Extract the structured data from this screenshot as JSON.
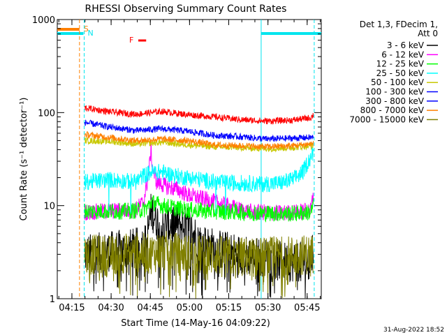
{
  "chart_data": {
    "type": "line",
    "title": "RHESSI Observing Summary Count Rates",
    "xlabel": "Start Time (14-May-16 04:09:22)",
    "ylabel": "Count Rate (s⁻¹ detector⁻¹)",
    "footer": "31-Aug-2022 18:52",
    "yscale": "log",
    "ylim": [
      1,
      1000
    ],
    "xlim_minutes": [
      0,
      101
    ],
    "xticks": [
      {
        "label": "04:15",
        "minute": 5.6
      },
      {
        "label": "04:30",
        "minute": 20.6
      },
      {
        "label": "04:45",
        "minute": 35.6
      },
      {
        "label": "05:00",
        "minute": 50.6
      },
      {
        "label": "05:15",
        "minute": 65.6
      },
      {
        "label": "05:30",
        "minute": 80.6
      },
      {
        "label": "05:45",
        "minute": 95.6
      }
    ],
    "yticks": [
      {
        "label": "1",
        "value": 1
      },
      {
        "label": "10",
        "value": 10
      },
      {
        "label": "100",
        "value": 100
      },
      {
        "label": "1000",
        "value": 1000
      }
    ],
    "legend": {
      "title_lines": [
        "Det 1,3, FDecim 1,",
        "Att 0"
      ],
      "placement": "right"
    },
    "flags": {
      "saa": {
        "label": "S",
        "color": "#ff8000",
        "start_minute": 0,
        "end_minute": 8.5
      },
      "night": {
        "label": "N",
        "color": "#00e5ee",
        "intervals": [
          [
            0,
            10
          ],
          [
            78,
            101
          ]
        ]
      },
      "flare": {
        "label": "F",
        "color": "#ff0000",
        "start_minute": 31,
        "end_minute": 34
      }
    },
    "data_window_minutes": [
      10.5,
      98
    ],
    "vertical_lines": [
      {
        "minute": 8.5,
        "color": "#ff8000",
        "style": "dashed"
      },
      {
        "minute": 10.3,
        "color": "#00e5ee",
        "style": "dashed"
      },
      {
        "minute": 78,
        "color": "#00e5ee",
        "style": "solid"
      },
      {
        "minute": 98.3,
        "color": "#00e5ee",
        "style": "dashed"
      }
    ],
    "series": [
      {
        "name": "3 - 6 keV",
        "color": "#000000",
        "points": [
          [
            11,
            3
          ],
          [
            30,
            3.5
          ],
          [
            34,
            4
          ],
          [
            36,
            9
          ],
          [
            40,
            5.5
          ],
          [
            44,
            6.5
          ],
          [
            50,
            6
          ],
          [
            55,
            4
          ],
          [
            60,
            3.5
          ],
          [
            70,
            3
          ],
          [
            78,
            2.8
          ],
          [
            85,
            2.5
          ],
          [
            92,
            2.5
          ],
          [
            97,
            2.5
          ],
          [
            98,
            4
          ]
        ]
      },
      {
        "name": "6 - 12 keV",
        "color": "#ff00ff",
        "points": [
          [
            11,
            8.5
          ],
          [
            30,
            9
          ],
          [
            33,
            11
          ],
          [
            35,
            22
          ],
          [
            35.8,
            40
          ],
          [
            36.5,
            25
          ],
          [
            38,
            18
          ],
          [
            42,
            16
          ],
          [
            46,
            15
          ],
          [
            50,
            13
          ],
          [
            55,
            12
          ],
          [
            60,
            11
          ],
          [
            65,
            10
          ],
          [
            70,
            9
          ],
          [
            75,
            8.5
          ],
          [
            80,
            8.5
          ],
          [
            85,
            8.3
          ],
          [
            92,
            8.5
          ],
          [
            97,
            9
          ],
          [
            98,
            14
          ]
        ]
      },
      {
        "name": "12 - 25 keV",
        "color": "#00ff00",
        "points": [
          [
            11,
            8.7
          ],
          [
            25,
            8.7
          ],
          [
            33,
            9
          ],
          [
            35,
            10
          ],
          [
            36,
            11
          ],
          [
            40,
            10
          ],
          [
            50,
            9
          ],
          [
            60,
            8.7
          ],
          [
            70,
            8.5
          ],
          [
            80,
            8.3
          ],
          [
            90,
            8.2
          ],
          [
            97,
            8.5
          ],
          [
            98,
            10
          ]
        ]
      },
      {
        "name": "25 - 50 keV",
        "color": "#00ffff",
        "points": [
          [
            11,
            18
          ],
          [
            20,
            19
          ],
          [
            30,
            18
          ],
          [
            33,
            21
          ],
          [
            36,
            23
          ],
          [
            40,
            23
          ],
          [
            45,
            21
          ],
          [
            50,
            20
          ],
          [
            55,
            19
          ],
          [
            60,
            18
          ],
          [
            65,
            17.5
          ],
          [
            70,
            17.5
          ],
          [
            78,
            17
          ],
          [
            85,
            17.5
          ],
          [
            90,
            19
          ],
          [
            94,
            23
          ],
          [
            96,
            30
          ],
          [
            98,
            37
          ]
        ]
      },
      {
        "name": "50 - 100 keV",
        "color": "#c8c800",
        "points": [
          [
            11,
            50
          ],
          [
            20,
            49
          ],
          [
            30,
            46
          ],
          [
            40,
            48
          ],
          [
            50,
            45
          ],
          [
            60,
            43
          ],
          [
            70,
            42
          ],
          [
            80,
            41
          ],
          [
            90,
            42
          ],
          [
            97,
            44
          ]
        ]
      },
      {
        "name": "100 - 300 keV",
        "color": "#0000ff",
        "points": [
          [
            11,
            78
          ],
          [
            20,
            70
          ],
          [
            30,
            64
          ],
          [
            40,
            67
          ],
          [
            50,
            63
          ],
          [
            60,
            57
          ],
          [
            70,
            55
          ],
          [
            80,
            52
          ],
          [
            90,
            53
          ],
          [
            97,
            54
          ]
        ]
      },
      {
        "name": "300 - 800 keV",
        "color": "#0000ff",
        "points": []
      },
      {
        "name": "800 - 7000 keV",
        "color": "#ff8000",
        "points": [
          [
            11,
            58
          ],
          [
            20,
            54
          ],
          [
            30,
            50
          ],
          [
            40,
            52
          ],
          [
            50,
            50
          ],
          [
            60,
            45
          ],
          [
            70,
            44
          ],
          [
            80,
            43
          ],
          [
            90,
            44
          ],
          [
            97,
            46
          ]
        ]
      },
      {
        "name": "7000 - 15000 keV",
        "color": "#808000",
        "points": [
          [
            11,
            3
          ],
          [
            20,
            2.9
          ],
          [
            30,
            3.2
          ],
          [
            35,
            3
          ],
          [
            40,
            3.3
          ],
          [
            50,
            3
          ],
          [
            60,
            2.9
          ],
          [
            70,
            2.8
          ],
          [
            80,
            2.8
          ],
          [
            90,
            2.9
          ],
          [
            97,
            3
          ]
        ]
      }
    ],
    "extra_series": [
      {
        "name": "red",
        "color": "#ff0000",
        "points": [
          [
            11,
            112
          ],
          [
            20,
            102
          ],
          [
            30,
            96
          ],
          [
            40,
            103
          ],
          [
            50,
            95
          ],
          [
            60,
            90
          ],
          [
            70,
            84
          ],
          [
            80,
            81
          ],
          [
            90,
            83
          ],
          [
            97,
            88
          ],
          [
            98,
            95
          ]
        ]
      }
    ]
  }
}
